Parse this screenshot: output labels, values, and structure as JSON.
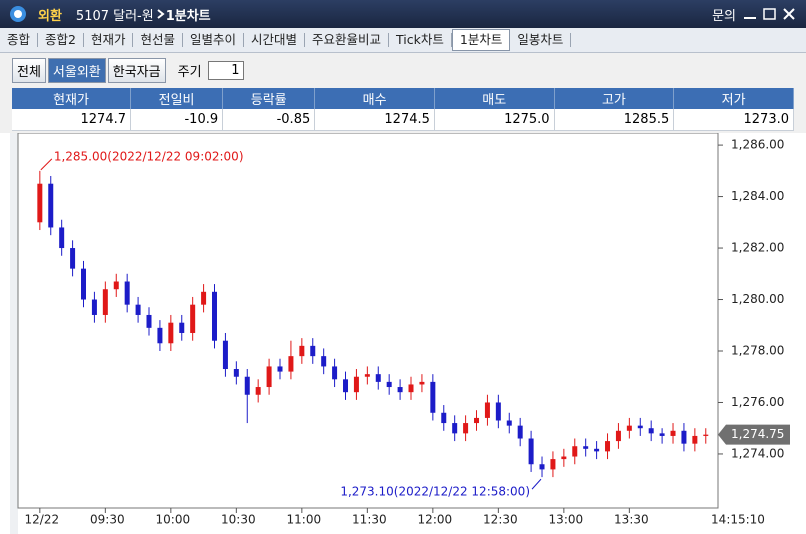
{
  "title_bar": {
    "menu": "외환",
    "code_name": "5107 달러-원",
    "screen": "1분차트",
    "help": "문의"
  },
  "tabs": [
    "종합",
    "종합2",
    "현재가",
    "현선물",
    "일별추이",
    "시간대별",
    "주요환율비교",
    "Tick차트",
    "1분차트",
    "일봉차트"
  ],
  "toolbar": {
    "buttons": [
      "전체",
      "서울외환",
      "한국자금"
    ],
    "period_label": "주기",
    "period": 1
  },
  "quote_table": {
    "headers": [
      "현재가",
      "전일비",
      "등락률",
      "매수",
      "매도",
      "고가",
      "저가"
    ],
    "values": [
      "1274.7",
      "-10.9",
      "-0.85",
      "1274.5",
      "1275.0",
      "1285.5",
      "1273.0"
    ]
  },
  "chart_data": {
    "type": "candlestick",
    "x": [
      0,
      5,
      10,
      15,
      20,
      25,
      30,
      35,
      40,
      45,
      50,
      55,
      60,
      65,
      70,
      75,
      80,
      85,
      90,
      95,
      100,
      105,
      110,
      115,
      120,
      125,
      130,
      135,
      140,
      145,
      150,
      155,
      160,
      165,
      170,
      175,
      180,
      185,
      190,
      195,
      200,
      205,
      210,
      215,
      220,
      225,
      230,
      235,
      240,
      245,
      250,
      255,
      260,
      265,
      270,
      275,
      280,
      285,
      290,
      295,
      300,
      305
    ],
    "open": [
      1283.0,
      1284.5,
      1282.8,
      1282.0,
      1281.2,
      1280.0,
      1279.4,
      1280.4,
      1280.7,
      1279.8,
      1279.4,
      1278.9,
      1278.3,
      1279.1,
      1278.7,
      1279.8,
      1280.3,
      1278.4,
      1277.3,
      1277.0,
      1276.3,
      1276.6,
      1277.4,
      1277.2,
      1277.8,
      1278.2,
      1277.8,
      1277.4,
      1276.9,
      1276.4,
      1277.0,
      1277.1,
      1276.8,
      1276.6,
      1276.4,
      1276.7,
      1276.8,
      1275.6,
      1275.2,
      1274.8,
      1275.2,
      1275.4,
      1276.0,
      1275.3,
      1275.1,
      1274.6,
      1273.6,
      1273.4,
      1273.8,
      1273.9,
      1274.3,
      1274.2,
      1274.1,
      1274.5,
      1274.9,
      1275.1,
      1275.0,
      1274.8,
      1274.7,
      1274.9,
      1274.4,
      1274.7
    ],
    "high": [
      1285.0,
      1284.8,
      1283.1,
      1282.3,
      1281.5,
      1280.3,
      1280.7,
      1281.0,
      1281.0,
      1280.1,
      1279.7,
      1279.2,
      1279.4,
      1279.4,
      1280.1,
      1280.6,
      1280.6,
      1278.7,
      1277.6,
      1277.3,
      1276.9,
      1277.7,
      1277.7,
      1278.4,
      1278.5,
      1278.5,
      1278.1,
      1277.7,
      1277.2,
      1277.3,
      1277.4,
      1277.4,
      1277.1,
      1276.9,
      1277.0,
      1277.1,
      1277.1,
      1275.9,
      1275.5,
      1275.5,
      1275.7,
      1276.3,
      1276.3,
      1275.6,
      1275.4,
      1274.9,
      1273.9,
      1274.1,
      1274.2,
      1274.6,
      1274.6,
      1274.5,
      1274.8,
      1275.2,
      1275.4,
      1275.4,
      1275.3,
      1275.0,
      1275.2,
      1275.2,
      1275.0,
      1275.0
    ],
    "low": [
      1282.7,
      1282.5,
      1281.7,
      1280.9,
      1279.7,
      1279.1,
      1279.1,
      1280.1,
      1279.5,
      1279.1,
      1278.6,
      1278.0,
      1278.0,
      1278.4,
      1278.4,
      1279.5,
      1278.1,
      1277.0,
      1276.7,
      1275.2,
      1276.0,
      1276.3,
      1276.9,
      1276.9,
      1277.5,
      1277.5,
      1277.1,
      1276.6,
      1276.1,
      1276.1,
      1276.7,
      1276.5,
      1276.3,
      1276.1,
      1276.1,
      1276.4,
      1275.3,
      1274.9,
      1274.5,
      1274.5,
      1274.9,
      1275.1,
      1275.0,
      1274.8,
      1274.3,
      1273.3,
      1273.1,
      1273.1,
      1273.5,
      1273.6,
      1273.9,
      1273.8,
      1273.8,
      1274.2,
      1274.6,
      1274.7,
      1274.5,
      1274.4,
      1274.4,
      1274.1,
      1274.1,
      1274.4
    ],
    "close": [
      1284.5,
      1282.8,
      1282.0,
      1281.2,
      1280.0,
      1279.4,
      1280.4,
      1280.7,
      1279.8,
      1279.4,
      1278.9,
      1278.3,
      1279.1,
      1278.7,
      1279.8,
      1280.3,
      1278.4,
      1277.3,
      1277.0,
      1276.3,
      1276.6,
      1277.4,
      1277.2,
      1277.8,
      1278.2,
      1277.8,
      1277.4,
      1276.9,
      1276.4,
      1277.0,
      1277.1,
      1276.8,
      1276.6,
      1276.4,
      1276.7,
      1276.8,
      1275.6,
      1275.2,
      1274.8,
      1275.2,
      1275.4,
      1276.0,
      1275.3,
      1275.1,
      1274.6,
      1273.6,
      1273.4,
      1273.8,
      1273.9,
      1274.3,
      1274.2,
      1274.1,
      1274.5,
      1274.9,
      1275.1,
      1275.0,
      1274.8,
      1274.7,
      1274.9,
      1274.4,
      1274.7,
      1274.75
    ],
    "up_color": "#e01818",
    "down_color": "#1c1cc8",
    "xlim": [
      -10,
      310.6
    ],
    "xticks": [
      {
        "value": 0,
        "label": "12/22"
      },
      {
        "value": 30,
        "label": "09:30"
      },
      {
        "value": 60,
        "label": "10:00"
      },
      {
        "value": 90,
        "label": "10:30"
      },
      {
        "value": 120,
        "label": "11:00"
      },
      {
        "value": 150,
        "label": "11:30"
      },
      {
        "value": 180,
        "label": "12:00"
      },
      {
        "value": 210,
        "label": "12:30"
      },
      {
        "value": 240,
        "label": "13:00"
      },
      {
        "value": 270,
        "label": "13:30"
      }
    ],
    "last_time": "14:15:10",
    "ylim": [
      1271.9,
      1286.47
    ],
    "yticks": [
      {
        "value": 1274,
        "label": "1,274.00"
      },
      {
        "value": 1276,
        "label": "1,276.00"
      },
      {
        "value": 1278,
        "label": "1,278.00"
      },
      {
        "value": 1280,
        "label": "1,280.00"
      },
      {
        "value": 1282,
        "label": "1,282.00"
      },
      {
        "value": 1284,
        "label": "1,284.00"
      },
      {
        "value": 1286,
        "label": "1,286.00"
      }
    ],
    "last_price": {
      "value": 1274.75,
      "label": "1,274.75"
    },
    "annotations": [
      "1,285.00(2022/12/22 09:02:00)",
      "1,273.10(2022/12/22 12:58:00)"
    ],
    "grid": false
  }
}
